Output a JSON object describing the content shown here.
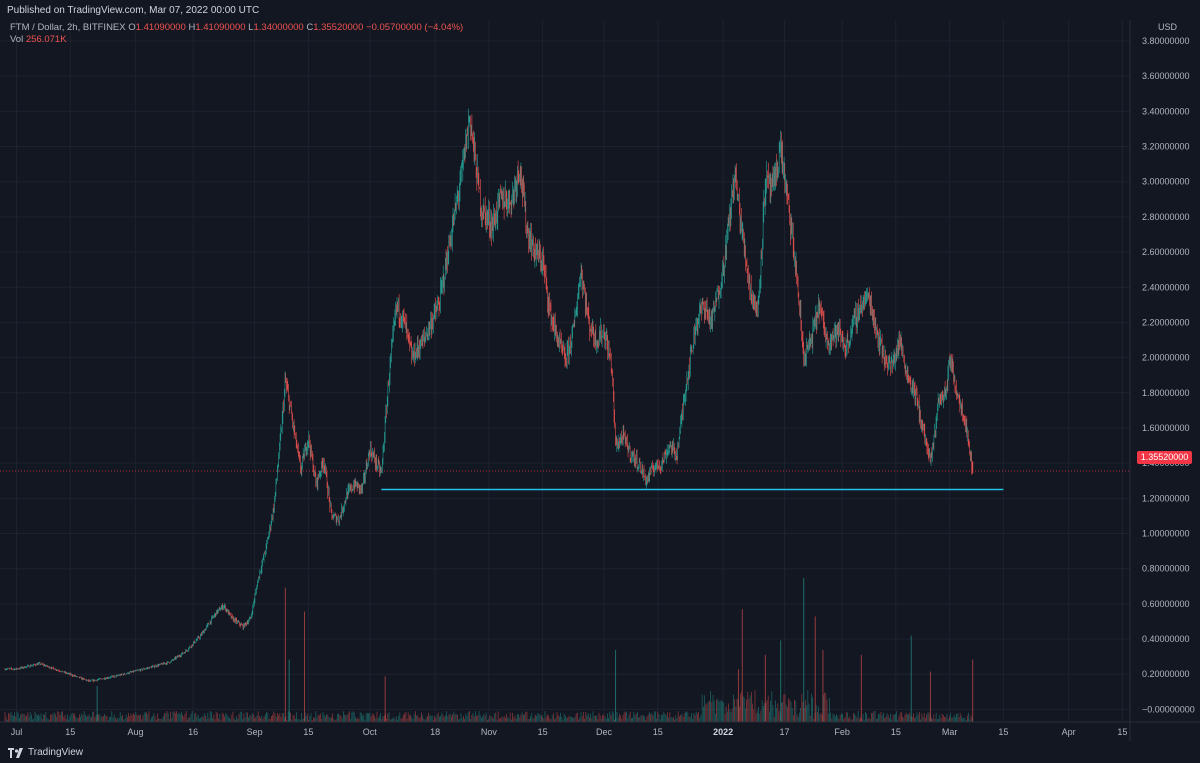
{
  "header": {
    "published": "Published on TradingView.com, Mar 07, 2022 00:00 UTC"
  },
  "legend": {
    "symbol": "FTM / Dollar, 2h, BITFINEX",
    "ohlc": [
      {
        "label": "O",
        "value": "1.41090000"
      },
      {
        "label": "H",
        "value": "1.41090000"
      },
      {
        "label": "L",
        "value": "1.34000000"
      },
      {
        "label": "C",
        "value": "1.35520000"
      }
    ],
    "change": "−0.05700000 (−4.04%)",
    "vol_label": "Vol",
    "vol_value": "256.071K"
  },
  "currency": "USD",
  "last_price": "1.35520000",
  "footer": {
    "logo_text": "TradingView"
  },
  "colors": {
    "up": "#26a69a",
    "down": "#ef5350",
    "support_line": "#22c3e6",
    "background": "#131722",
    "grid": "#1e2230",
    "price_line": "#f23645"
  },
  "chart_data": {
    "type": "candlestick",
    "title": "FTM / Dollar, 2h, BITFINEX",
    "y_axis": {
      "ticks": [
        "3.80000000",
        "3.60000000",
        "3.40000000",
        "3.20000000",
        "3.00000000",
        "2.80000000",
        "2.60000000",
        "2.40000000",
        "2.20000000",
        "2.00000000",
        "1.80000000",
        "1.60000000",
        "1.40000000",
        "1.20000000",
        "1.00000000",
        "0.80000000",
        "0.60000000",
        "0.40000000",
        "0.20000000",
        "−0.00000000"
      ],
      "range": [
        -0.1,
        3.85
      ],
      "side": "right"
    },
    "x_axis": {
      "ticks": [
        {
          "label": "Jul",
          "date": "2021-07-01"
        },
        {
          "label": "15",
          "date": "2021-07-15"
        },
        {
          "label": "Aug",
          "date": "2021-08-01"
        },
        {
          "label": "16",
          "date": "2021-08-16"
        },
        {
          "label": "Sep",
          "date": "2021-09-01"
        },
        {
          "label": "15",
          "date": "2021-09-15"
        },
        {
          "label": "Oct",
          "date": "2021-10-01"
        },
        {
          "label": "18",
          "date": "2021-10-18"
        },
        {
          "label": "Nov",
          "date": "2021-11-01"
        },
        {
          "label": "15",
          "date": "2021-11-15"
        },
        {
          "label": "Dec",
          "date": "2021-12-01"
        },
        {
          "label": "15",
          "date": "2021-12-15"
        },
        {
          "label": "2022",
          "date": "2022-01-01"
        },
        {
          "label": "17",
          "date": "2022-01-17"
        },
        {
          "label": "Feb",
          "date": "2022-02-01"
        },
        {
          "label": "15",
          "date": "2022-02-15"
        },
        {
          "label": "Mar",
          "date": "2022-03-01"
        },
        {
          "label": "15",
          "date": "2022-03-15"
        },
        {
          "label": "Apr",
          "date": "2022-04-01"
        },
        {
          "label": "15",
          "date": "2022-04-15"
        }
      ]
    },
    "price_path": [
      [
        "2021-07-01",
        0.23
      ],
      [
        "2021-07-07",
        0.26
      ],
      [
        "2021-07-20",
        0.16
      ],
      [
        "2021-07-27",
        0.19
      ],
      [
        "2021-08-05",
        0.24
      ],
      [
        "2021-08-10",
        0.27
      ],
      [
        "2021-08-14",
        0.33
      ],
      [
        "2021-08-18",
        0.42
      ],
      [
        "2021-08-22",
        0.55
      ],
      [
        "2021-08-24",
        0.59
      ],
      [
        "2021-08-26",
        0.52
      ],
      [
        "2021-08-29",
        0.47
      ],
      [
        "2021-08-31",
        0.52
      ],
      [
        "2021-09-02",
        0.75
      ],
      [
        "2021-09-04",
        0.92
      ],
      [
        "2021-09-06",
        1.15
      ],
      [
        "2021-09-08",
        1.6
      ],
      [
        "2021-09-09",
        1.87
      ],
      [
        "2021-09-11",
        1.62
      ],
      [
        "2021-09-13",
        1.36
      ],
      [
        "2021-09-15",
        1.55
      ],
      [
        "2021-09-17",
        1.28
      ],
      [
        "2021-09-19",
        1.42
      ],
      [
        "2021-09-21",
        1.1
      ],
      [
        "2021-09-23",
        1.08
      ],
      [
        "2021-09-25",
        1.22
      ],
      [
        "2021-09-27",
        1.28
      ],
      [
        "2021-09-29",
        1.25
      ],
      [
        "2021-10-01",
        1.48
      ],
      [
        "2021-10-04",
        1.34
      ],
      [
        "2021-10-06",
        1.9
      ],
      [
        "2021-10-08",
        2.3
      ],
      [
        "2021-10-10",
        2.2
      ],
      [
        "2021-10-12",
        2.0
      ],
      [
        "2021-10-15",
        2.1
      ],
      [
        "2021-10-17",
        2.2
      ],
      [
        "2021-10-19",
        2.3
      ],
      [
        "2021-10-21",
        2.55
      ],
      [
        "2021-10-23",
        2.8
      ],
      [
        "2021-10-25",
        3.05
      ],
      [
        "2021-10-27",
        3.38
      ],
      [
        "2021-10-28",
        3.2
      ],
      [
        "2021-10-30",
        2.85
      ],
      [
        "2021-11-02",
        2.75
      ],
      [
        "2021-11-04",
        2.9
      ],
      [
        "2021-11-07",
        2.9
      ],
      [
        "2021-11-09",
        3.1
      ],
      [
        "2021-11-11",
        2.72
      ],
      [
        "2021-11-13",
        2.6
      ],
      [
        "2021-11-15",
        2.55
      ],
      [
        "2021-11-17",
        2.25
      ],
      [
        "2021-11-19",
        2.1
      ],
      [
        "2021-11-21",
        1.98
      ],
      [
        "2021-11-23",
        2.15
      ],
      [
        "2021-11-25",
        2.5
      ],
      [
        "2021-11-27",
        2.2
      ],
      [
        "2021-11-29",
        2.1
      ],
      [
        "2021-12-01",
        2.15
      ],
      [
        "2021-12-03",
        1.95
      ],
      [
        "2021-12-04",
        1.5
      ],
      [
        "2021-12-06",
        1.55
      ],
      [
        "2021-12-08",
        1.45
      ],
      [
        "2021-12-10",
        1.4
      ],
      [
        "2021-12-12",
        1.3
      ],
      [
        "2021-12-14",
        1.38
      ],
      [
        "2021-12-16",
        1.4
      ],
      [
        "2021-12-18",
        1.5
      ],
      [
        "2021-12-20",
        1.45
      ],
      [
        "2021-12-22",
        1.8
      ],
      [
        "2021-12-25",
        2.2
      ],
      [
        "2021-12-27",
        2.3
      ],
      [
        "2021-12-29",
        2.2
      ],
      [
        "2022-01-01",
        2.5
      ],
      [
        "2022-01-03",
        2.85
      ],
      [
        "2022-01-04",
        3.05
      ],
      [
        "2022-01-06",
        2.7
      ],
      [
        "2022-01-08",
        2.4
      ],
      [
        "2022-01-10",
        2.25
      ],
      [
        "2022-01-12",
        3.0
      ],
      [
        "2022-01-14",
        2.95
      ],
      [
        "2022-01-16",
        3.2
      ],
      [
        "2022-01-18",
        2.85
      ],
      [
        "2022-01-20",
        2.5
      ],
      [
        "2022-01-22",
        2.0
      ],
      [
        "2022-01-24",
        2.1
      ],
      [
        "2022-01-26",
        2.3
      ],
      [
        "2022-01-28",
        2.1
      ],
      [
        "2022-01-31",
        2.15
      ],
      [
        "2022-02-02",
        2.05
      ],
      [
        "2022-02-04",
        2.2
      ],
      [
        "2022-02-06",
        2.3
      ],
      [
        "2022-02-08",
        2.35
      ],
      [
        "2022-02-10",
        2.15
      ],
      [
        "2022-02-12",
        2.0
      ],
      [
        "2022-02-14",
        1.95
      ],
      [
        "2022-02-16",
        2.1
      ],
      [
        "2022-02-18",
        1.9
      ],
      [
        "2022-02-20",
        1.8
      ],
      [
        "2022-02-22",
        1.6
      ],
      [
        "2022-02-24",
        1.4
      ],
      [
        "2022-02-25",
        1.55
      ],
      [
        "2022-02-26",
        1.75
      ],
      [
        "2022-02-28",
        1.8
      ],
      [
        "2022-03-01",
        2.0
      ],
      [
        "2022-03-03",
        1.8
      ],
      [
        "2022-03-05",
        1.65
      ],
      [
        "2022-03-07",
        1.355
      ]
    ],
    "support_line": {
      "value": 1.25,
      "from": "2021-10-04",
      "to": "2022-03-15"
    },
    "last_price": 1.3552,
    "volume_peaks": [
      [
        "2021-07-22",
        150
      ],
      [
        "2021-09-09",
        560
      ],
      [
        "2021-09-10",
        260
      ],
      [
        "2021-09-14",
        460
      ],
      [
        "2021-10-05",
        190
      ],
      [
        "2021-12-04",
        300
      ],
      [
        "2022-01-05",
        220
      ],
      [
        "2022-01-06",
        470
      ],
      [
        "2022-01-12",
        280
      ],
      [
        "2022-01-16",
        340
      ],
      [
        "2022-01-22",
        600
      ],
      [
        "2022-01-25",
        440
      ],
      [
        "2022-01-27",
        300
      ],
      [
        "2022-02-06",
        280
      ],
      [
        "2022-02-19",
        360
      ],
      [
        "2022-02-24",
        210
      ],
      [
        "2022-03-07",
        260
      ]
    ]
  }
}
